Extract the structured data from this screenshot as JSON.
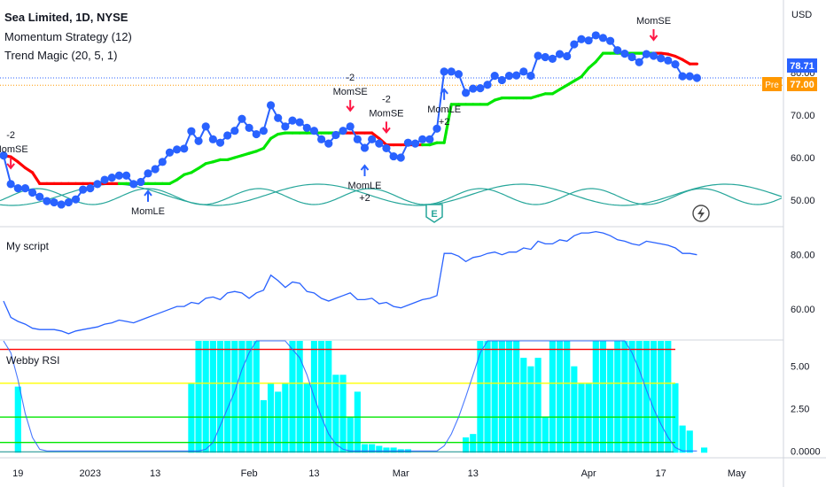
{
  "header": {
    "symbol": "Sea Limited, 1D, NYSE",
    "indicator1": "Momentum Strategy (12)",
    "indicator2": "Trend Magic (20, 5, 1)",
    "currency": "USD"
  },
  "price_badges": {
    "last": "78.71",
    "pre_label": "Pre",
    "pre_value": "77.00"
  },
  "colors": {
    "price_line": "#2962ff",
    "trend_up": "#00e600",
    "trend_down": "#ff0000",
    "wave": "#26a69a",
    "webby_bar": "#00ffff",
    "last_badge": "#2962ff",
    "pre_badge": "#ff9800"
  },
  "chart_data": [
    {
      "type": "line",
      "panel": "price",
      "ylim": [
        44,
        97
      ],
      "yticks": [
        "50.00",
        "60.00",
        "70.00",
        "80.00"
      ],
      "x_ticks": [
        "19",
        "2023",
        "13",
        "Feb",
        "13",
        "Mar",
        "13",
        "Apr",
        "17",
        "May"
      ],
      "series": [
        {
          "values": [
            60.5,
            53.8,
            52.8,
            52.8,
            51.8,
            50.8,
            49.8,
            49.5,
            49.0,
            49.5,
            50.2,
            52.5,
            52.8,
            53.8,
            54.8,
            55.3,
            55.8,
            55.8,
            53.8,
            54.3,
            56.3,
            57.3,
            59.0,
            61.2,
            61.9,
            62.1,
            66.2,
            63.9,
            67.3,
            64.3,
            63.5,
            65.2,
            66.3,
            69.1,
            67.0,
            65.5,
            66.3,
            72.3,
            69.3,
            67.3,
            68.7,
            68.3,
            67.0,
            66.3,
            64.3,
            63.3,
            65.3,
            66.3,
            67.3,
            64.3,
            62.3,
            64.3,
            63.3,
            62.2,
            60.3,
            60.0,
            63.5,
            63.3,
            64.3,
            64.3,
            66.8,
            80.2,
            80.2,
            79.6,
            75.2,
            76.2,
            76.3,
            77.1,
            79.2,
            78.2,
            79.2,
            79.3,
            80.2,
            79.2,
            83.9,
            83.6,
            83.2,
            84.3,
            83.8,
            86.6,
            87.8,
            87.5,
            88.7,
            88.1,
            87.4,
            85.2,
            84.4,
            83.6,
            82.4,
            84.3,
            83.9,
            83.3,
            82.8,
            81.9,
            79.1,
            79.1,
            78.71
          ]
        }
      ],
      "trend_magic": {
        "values": [
          60.5,
          60.2,
          59.0,
          57.6,
          56.5,
          53.9,
          53.9,
          53.9,
          53.9,
          53.9,
          53.9,
          53.9,
          53.9,
          53.9,
          53.9,
          53.9,
          53.9,
          53.9,
          53.9,
          53.9,
          53.9,
          53.9,
          53.9,
          53.9,
          54.8,
          56.0,
          56.5,
          57.5,
          58.6,
          59.0,
          59.5,
          59.5,
          60.0,
          60.5,
          61.0,
          61.5,
          62.2,
          64.5,
          65.5,
          65.8,
          65.8,
          65.8,
          65.8,
          65.8,
          65.8,
          65.8,
          65.8,
          65.8,
          65.8,
          65.8,
          65.8,
          65.8,
          64.5,
          63.0,
          63.0,
          63.0,
          63.0,
          63.0,
          63.0,
          63.0,
          63.5,
          63.5,
          72.5,
          72.5,
          72.5,
          72.5,
          72.5,
          72.5,
          73.5,
          74.0,
          74.0,
          74.0,
          74.0,
          74.0,
          74.5,
          75.0,
          75.0,
          76.0,
          77.0,
          78.0,
          79.0,
          81.0,
          82.5,
          84.5,
          84.5,
          84.5,
          84.5,
          84.5,
          84.5,
          84.5,
          84.5,
          84.5,
          84.3,
          83.8,
          83.0,
          82.0,
          82.0
        ],
        "up": [
          false,
          false,
          false,
          false,
          false,
          false,
          false,
          false,
          false,
          false,
          false,
          false,
          false,
          false,
          false,
          false,
          true,
          true,
          true,
          true,
          true,
          true,
          true,
          true,
          true,
          true,
          true,
          true,
          true,
          true,
          true,
          true,
          true,
          true,
          true,
          true,
          true,
          true,
          true,
          true,
          true,
          true,
          true,
          true,
          true,
          true,
          true,
          false,
          false,
          false,
          false,
          false,
          false,
          false,
          false,
          false,
          false,
          false,
          true,
          true,
          true,
          true,
          true,
          true,
          true,
          true,
          true,
          true,
          true,
          true,
          true,
          true,
          true,
          true,
          true,
          true,
          true,
          true,
          true,
          true,
          true,
          true,
          true,
          true,
          true,
          true,
          true,
          true,
          true,
          true,
          false,
          false,
          false,
          false,
          false,
          false,
          false
        ]
      },
      "annotations": {
        "short": [
          {
            "i": 1,
            "label": "MomSE",
            "qty": "-2"
          },
          {
            "i": 48,
            "label": "MomSE",
            "qty": "-2"
          },
          {
            "i": 53,
            "label": "MomSE",
            "qty": "-2"
          },
          {
            "i": 90,
            "label": "MomSE",
            "qty": ""
          }
        ],
        "long": [
          {
            "i": 20,
            "label": "MomLE",
            "qty": ""
          },
          {
            "i": 50,
            "label": "MomLE",
            "qty": "+2"
          },
          {
            "i": 61,
            "label": "MomLE",
            "qty": "+2"
          }
        ]
      },
      "earnings_marker": "E"
    },
    {
      "type": "line",
      "panel": "my_script",
      "title": "My script",
      "ylim": [
        49,
        90
      ],
      "yticks": [
        "60.00",
        "80.00"
      ],
      "series": [
        {
          "values": [
            63.0,
            57.0,
            55.5,
            54.5,
            53.0,
            52.5,
            52.5,
            52.5,
            52.0,
            51.0,
            52.0,
            52.5,
            53.0,
            53.5,
            54.5,
            55.0,
            56.0,
            55.5,
            55.0,
            56.0,
            57.0,
            58.0,
            59.0,
            60.0,
            61.0,
            61.0,
            62.5,
            62.0,
            64.0,
            64.5,
            63.5,
            66.0,
            66.5,
            66.0,
            64.0,
            66.0,
            67.0,
            72.5,
            70.5,
            68.0,
            70.0,
            69.5,
            66.5,
            66.0,
            64.0,
            63.0,
            64.0,
            65.0,
            66.0,
            63.5,
            63.5,
            64.0,
            62.0,
            62.5,
            61.0,
            60.5,
            61.5,
            62.5,
            63.5,
            64.0,
            65.0,
            80.5,
            80.5,
            79.5,
            77.5,
            79.0,
            79.5,
            80.5,
            81.0,
            80.0,
            81.0,
            81.0,
            82.5,
            82.0,
            85.0,
            84.0,
            84.0,
            85.5,
            85.0,
            87.0,
            88.0,
            88.0,
            88.5,
            88.0,
            87.0,
            85.5,
            85.0,
            84.0,
            83.5,
            85.0,
            84.5,
            84.0,
            83.5,
            82.5,
            80.5,
            80.5,
            80.0
          ]
        }
      ]
    },
    {
      "type": "bar",
      "panel": "webby_rsi",
      "title": "Webby RSI",
      "ylim": [
        -0.3,
        6.5
      ],
      "yticks": [
        "0.0000",
        "2.50",
        "5.00"
      ],
      "levels": [
        0.5,
        2.0,
        4.0,
        6.0
      ],
      "level_colors": [
        "#00e600",
        "#00e600",
        "#ffff00",
        "#ff0000"
      ],
      "bar_start_index": 2,
      "bar_values": [
        3.8,
        0,
        0,
        0,
        0,
        0,
        0,
        0,
        0,
        0,
        0,
        0,
        0,
        0,
        0,
        0,
        0,
        0,
        0,
        0,
        0,
        0,
        0,
        0,
        4.0,
        6.5,
        6.5,
        6.5,
        6.5,
        6.5,
        6.5,
        6.5,
        6.5,
        6.5,
        3.0,
        4.0,
        3.5,
        4.0,
        6.5,
        6.5,
        4.0,
        6.5,
        6.5,
        6.5,
        4.5,
        4.5,
        2.0,
        3.5,
        0.4,
        0.4,
        0.3,
        0.2,
        0.2,
        0.1,
        0.1,
        0,
        0,
        0,
        0,
        0,
        0,
        0,
        0.8,
        1.0,
        6.5,
        6.5,
        6.5,
        6.5,
        6.5,
        6.5,
        5.5,
        5.0,
        5.5,
        2.0,
        6.5,
        6.5,
        6.5,
        5.0,
        4.0,
        4.0,
        6.5,
        6.5,
        6.0,
        6.5,
        6.5,
        6.5,
        6.5,
        6.5,
        6.5,
        6.5,
        6.5,
        4.0,
        1.5,
        1.2,
        0,
        0.2
      ],
      "rsi_line": [
        6.5,
        5.8,
        4.2,
        2.2,
        0.8,
        0.1,
        0,
        0,
        0,
        0,
        0,
        0,
        0,
        0,
        0,
        0,
        0,
        0,
        0,
        0,
        0,
        0,
        0,
        0,
        0,
        0,
        0,
        0,
        0.1,
        0.5,
        1.5,
        2.5,
        3.5,
        4.8,
        5.8,
        6.5,
        6.5,
        6.5,
        6.5,
        6.5,
        6.0,
        5.5,
        4.5,
        3.2,
        2.0,
        1.0,
        0.4,
        0.1,
        0,
        0,
        0,
        0,
        0,
        0,
        0,
        0,
        0,
        0,
        0,
        0,
        0,
        0.3,
        1.0,
        2.0,
        3.2,
        4.5,
        5.8,
        6.5,
        6.5,
        6.5,
        6.5,
        6.5,
        6.5,
        6.5,
        6.5,
        6.5,
        6.5,
        6.5,
        6.5,
        6.5,
        6.5,
        6.5,
        6.5,
        6.5,
        6.5,
        6.5,
        6.5,
        5.8,
        4.8,
        3.6,
        2.5,
        1.6,
        0.8,
        0.2,
        0,
        0,
        0
      ]
    }
  ]
}
